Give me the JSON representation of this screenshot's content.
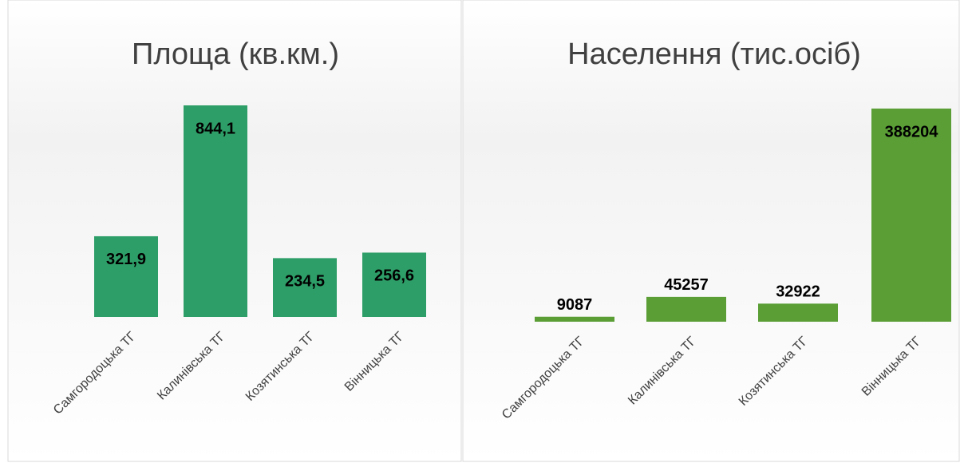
{
  "chart_data": [
    {
      "type": "bar",
      "title": "Площа (кв.км.)",
      "categories": [
        "Самгородоцька ТГ",
        "Калинівська ТГ",
        "Козятинська ТГ",
        "Вінницька ТГ"
      ],
      "values": [
        321.9,
        844.1,
        234.5,
        256.6
      ],
      "value_labels": [
        "321,9",
        "844,1",
        "234,5",
        "256,6"
      ],
      "color": "#2e9e68"
    },
    {
      "type": "bar",
      "title": "Населення (тис.осіб)",
      "categories": [
        "Самгородоцька ТГ",
        "Калинівська ТГ",
        "Козятинська ТГ",
        "Вінницька ТГ"
      ],
      "values": [
        9087,
        45257,
        32922,
        388204
      ],
      "color": "#5a9e35"
    }
  ]
}
